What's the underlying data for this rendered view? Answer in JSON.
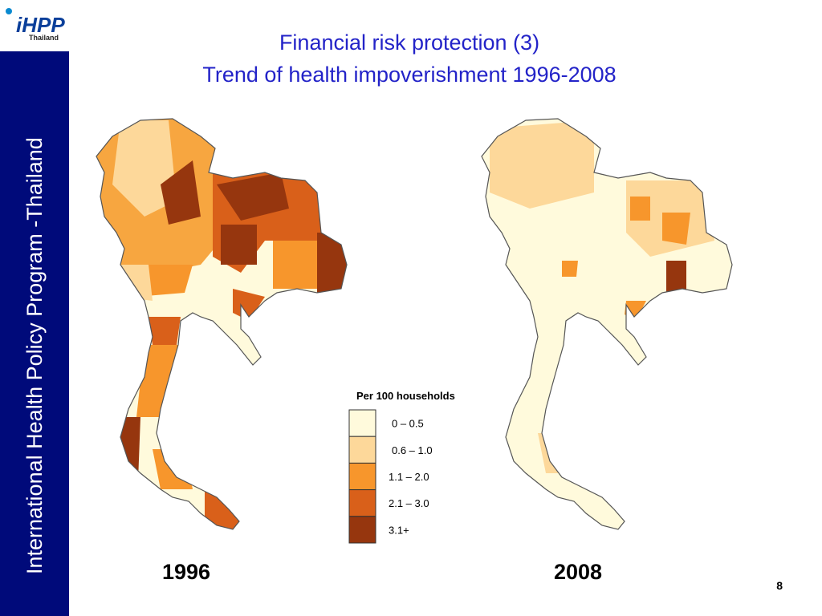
{
  "logo": {
    "text": "iHPP",
    "sub": "Thailand"
  },
  "sidebar": "International Health Policy Program -Thailand",
  "title": [
    "Financial risk protection (3)",
    "Trend of health impoverishment 1996-2008"
  ],
  "legend": {
    "title": "Per 100 households",
    "items": [
      {
        "label": "0 –  0.5",
        "color": "#fffadc"
      },
      {
        "label": "0.6 – 1.0",
        "color": "#fdd89a"
      },
      {
        "label": "1.1 – 2.0",
        "color": "#f7962c"
      },
      {
        "label": "2.1 – 3.0",
        "color": "#d9601a"
      },
      {
        "label": "3.1+",
        "color": "#96360e"
      }
    ]
  },
  "maps": [
    {
      "year": "1996"
    },
    {
      "year": "2008"
    }
  ],
  "page_number": "8"
}
